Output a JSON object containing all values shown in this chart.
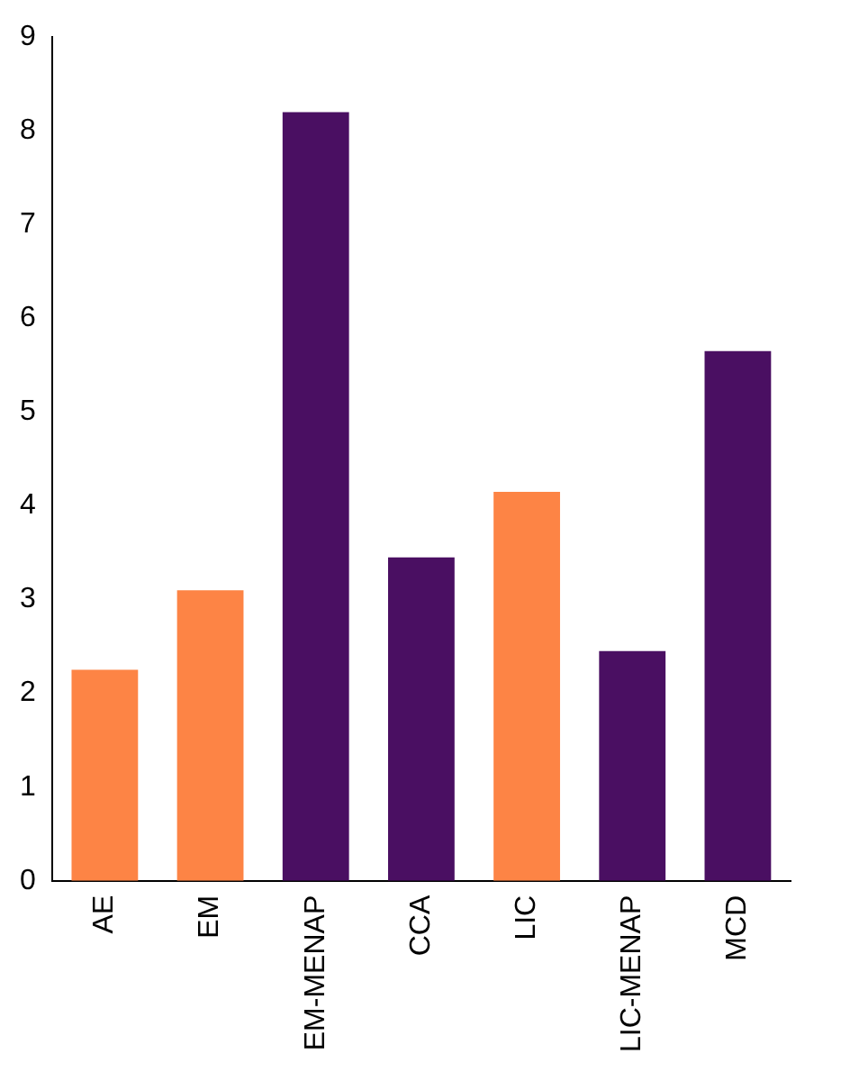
{
  "chart_data": {
    "type": "bar",
    "categories": [
      "AE",
      "EM",
      "EM-MENAP",
      "CCA",
      "LIC",
      "LIC-MENAP",
      "MCD"
    ],
    "values": [
      2.25,
      3.1,
      8.2,
      3.45,
      4.15,
      2.45,
      5.65
    ],
    "colors": [
      "#fd8445",
      "#fd8445",
      "#4a0f62",
      "#4a0f62",
      "#fd8445",
      "#4a0f62",
      "#4a0f62"
    ],
    "ylim": [
      0,
      9
    ],
    "yticks": [
      0,
      1,
      2,
      3,
      4,
      5,
      6,
      7,
      8,
      9
    ],
    "grid": false,
    "legend": false
  }
}
